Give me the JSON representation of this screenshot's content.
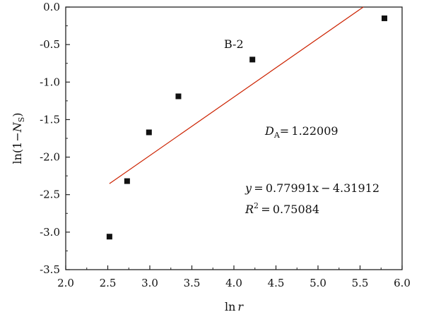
{
  "chart_data": {
    "type": "scatter",
    "xlabel": {
      "prefix": "ln",
      "var": "r"
    },
    "ylabel": {
      "prefix": "ln(1−",
      "var": "N",
      "sub": "S",
      "suffix": ")"
    },
    "xlim": [
      2.0,
      6.0
    ],
    "ylim": [
      -3.5,
      0.0
    ],
    "x_ticks": [
      "2.0",
      "2.5",
      "3.0",
      "3.5",
      "4.0",
      "4.5",
      "5.0",
      "5.5",
      "6.0"
    ],
    "y_ticks": [
      "0.0",
      "-0.5",
      "-1.0",
      "-1.5",
      "-2.0",
      "-2.5",
      "-3.0",
      "-3.5"
    ],
    "points": [
      {
        "x": 2.52,
        "y": -3.06
      },
      {
        "x": 2.73,
        "y": -2.32
      },
      {
        "x": 2.99,
        "y": -1.67
      },
      {
        "x": 3.34,
        "y": -1.19
      },
      {
        "x": 4.22,
        "y": -0.7
      },
      {
        "x": 5.79,
        "y": -0.15
      }
    ],
    "fit_line": {
      "slope": 0.77991,
      "intercept": -4.31912,
      "x_range": [
        2.52,
        5.54
      ],
      "color": "#cc2200"
    },
    "point_color": "#111111",
    "grid": false,
    "annotations": {
      "sample": "B-2",
      "dim_label_var": "D",
      "dim_label_sub": "A",
      "dim_value": "= 1.22009",
      "eq_var": "y",
      "eq_rest": " = 0.77991x − 4.31912",
      "r2_var": "R",
      "r2_sup": "2",
      "r2_value": " = 0.75084"
    }
  }
}
